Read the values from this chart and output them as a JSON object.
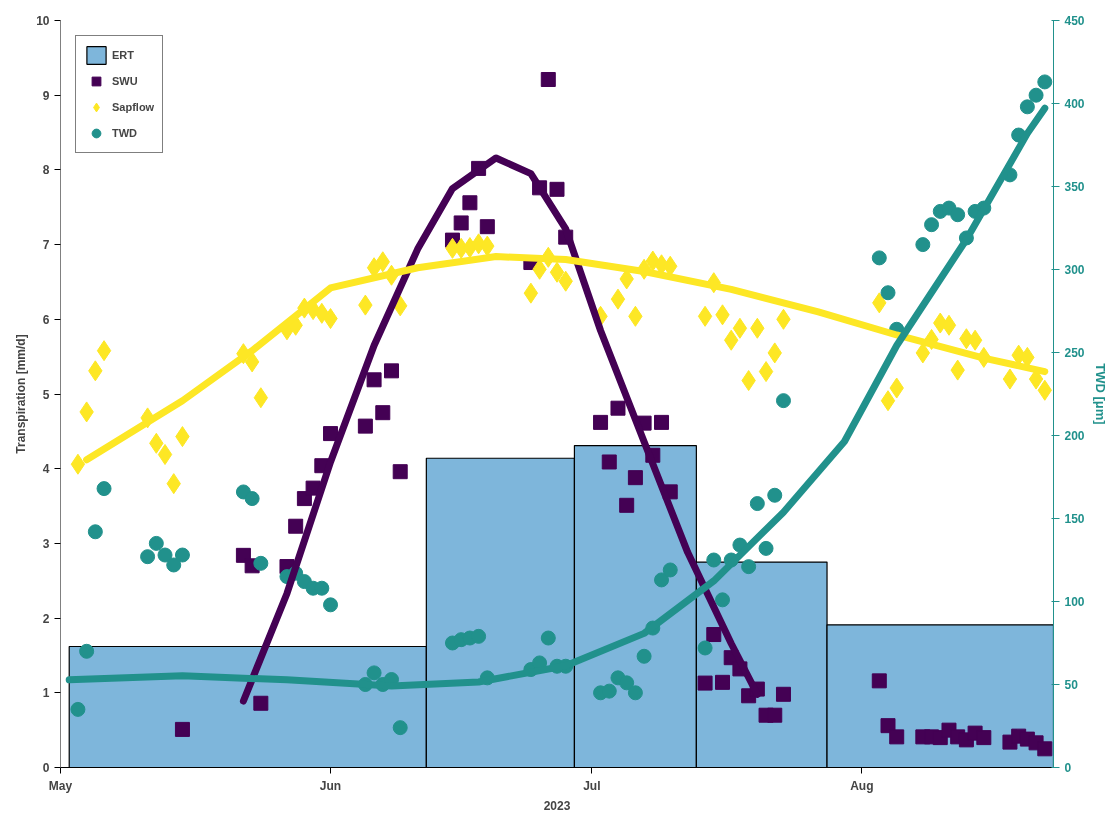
{
  "chart_data": {
    "type": "scatter",
    "xlabel": "2023",
    "ylabel": "Transpiration [mm/d]",
    "y2label": "TWD [μm]",
    "xlim": [
      "2023-05-01",
      "2023-08-23"
    ],
    "xticks": [
      {
        "value": "2023-05-01",
        "label": "May"
      },
      {
        "value": "2023-06-01",
        "label": "Jun"
      },
      {
        "value": "2023-07-01",
        "label": "Jul"
      },
      {
        "value": "2023-08-01",
        "label": "Aug"
      }
    ],
    "ylim": [
      0,
      10
    ],
    "yticks": [
      0,
      1,
      2,
      3,
      4,
      5,
      6,
      7,
      8,
      9,
      10
    ],
    "y2lim": [
      0,
      450
    ],
    "y2ticks": [
      0,
      50,
      100,
      150,
      200,
      250,
      300,
      350,
      400,
      450
    ],
    "grid": false,
    "legend": "top left",
    "series": [
      {
        "name": "ERT",
        "type": "histogram",
        "color": "#7eb6db",
        "bins": [
          "2023-05-02",
          "2023-06-12",
          "2023-06-29",
          "2023-07-13",
          "2023-07-28",
          "2023-08-23"
        ],
        "values": [
          1.62,
          4.14,
          4.31,
          2.75,
          1.91
        ]
      },
      {
        "name": "SWU",
        "marker": "square",
        "color": "#440154",
        "x": [
          "2023-05-15",
          "2023-05-22",
          "2023-05-23",
          "2023-05-24",
          "2023-05-27",
          "2023-05-28",
          "2023-05-29",
          "2023-05-30",
          "2023-05-31",
          "2023-06-01",
          "2023-06-05",
          "2023-06-06",
          "2023-06-07",
          "2023-06-08",
          "2023-06-09",
          "2023-06-15",
          "2023-06-16",
          "2023-06-17",
          "2023-06-18",
          "2023-06-19",
          "2023-06-24",
          "2023-06-25",
          "2023-06-26",
          "2023-06-27",
          "2023-06-28",
          "2023-07-02",
          "2023-07-03",
          "2023-07-04",
          "2023-07-05",
          "2023-07-06",
          "2023-07-07",
          "2023-07-08",
          "2023-07-09",
          "2023-07-10",
          "2023-07-14",
          "2023-07-15",
          "2023-07-16",
          "2023-07-17",
          "2023-07-18",
          "2023-07-19",
          "2023-07-20",
          "2023-07-21",
          "2023-07-22",
          "2023-07-23",
          "2023-08-03",
          "2023-08-04",
          "2023-08-05",
          "2023-08-08",
          "2023-08-09",
          "2023-08-10",
          "2023-08-11",
          "2023-08-12",
          "2023-08-13",
          "2023-08-14",
          "2023-08-15",
          "2023-08-18",
          "2023-08-19",
          "2023-08-20",
          "2023-08-21",
          "2023-08-22"
        ],
        "values": [
          0.51,
          2.84,
          2.7,
          0.86,
          2.69,
          3.23,
          3.6,
          3.74,
          4.04,
          4.47,
          4.57,
          5.19,
          4.75,
          5.31,
          3.96,
          7.06,
          7.29,
          7.56,
          8.02,
          7.24,
          6.76,
          7.76,
          9.21,
          7.74,
          7.1,
          4.62,
          4.09,
          4.81,
          3.51,
          3.88,
          4.61,
          4.18,
          4.62,
          3.69,
          1.13,
          1.78,
          1.14,
          1.47,
          1.32,
          0.96,
          1.05,
          0.7,
          0.7,
          0.98,
          1.16,
          0.56,
          0.41,
          0.41,
          0.41,
          0.4,
          0.5,
          0.41,
          0.37,
          0.46,
          0.4,
          0.34,
          0.42,
          0.38,
          0.33,
          0.25
        ]
      },
      {
        "name": "Sapflow",
        "marker": "diamond",
        "color": "#fde725",
        "x": [
          "2023-05-03",
          "2023-05-04",
          "2023-05-05",
          "2023-05-06",
          "2023-05-11",
          "2023-05-12",
          "2023-05-13",
          "2023-05-14",
          "2023-05-15",
          "2023-05-22",
          "2023-05-23",
          "2023-05-24",
          "2023-05-27",
          "2023-05-28",
          "2023-05-29",
          "2023-05-30",
          "2023-05-31",
          "2023-06-01",
          "2023-06-05",
          "2023-06-06",
          "2023-06-07",
          "2023-06-08",
          "2023-06-09",
          "2023-06-15",
          "2023-06-16",
          "2023-06-17",
          "2023-06-18",
          "2023-06-19",
          "2023-06-24",
          "2023-06-25",
          "2023-06-26",
          "2023-06-27",
          "2023-06-28",
          "2023-07-02",
          "2023-07-04",
          "2023-07-05",
          "2023-07-06",
          "2023-07-07",
          "2023-07-08",
          "2023-07-09",
          "2023-07-10",
          "2023-07-14",
          "2023-07-15",
          "2023-07-16",
          "2023-07-17",
          "2023-07-18",
          "2023-07-19",
          "2023-07-20",
          "2023-07-21",
          "2023-07-22",
          "2023-07-23",
          "2023-08-03",
          "2023-08-04",
          "2023-08-05",
          "2023-08-08",
          "2023-08-09",
          "2023-08-10",
          "2023-08-11",
          "2023-08-12",
          "2023-08-13",
          "2023-08-14",
          "2023-08-15",
          "2023-08-18",
          "2023-08-19",
          "2023-08-20",
          "2023-08-21",
          "2023-08-22"
        ],
        "values": [
          4.06,
          4.76,
          5.31,
          5.58,
          4.68,
          4.34,
          4.19,
          3.8,
          4.43,
          5.54,
          5.43,
          4.95,
          5.86,
          5.92,
          6.15,
          6.13,
          6.08,
          6.01,
          6.19,
          6.69,
          6.77,
          6.59,
          6.18,
          6.95,
          6.95,
          6.96,
          7.01,
          6.98,
          6.35,
          6.67,
          6.83,
          6.63,
          6.51,
          6.04,
          6.27,
          6.54,
          6.04,
          6.67,
          6.78,
          6.73,
          6.71,
          6.04,
          6.49,
          6.06,
          5.72,
          5.88,
          5.18,
          5.88,
          5.3,
          5.55,
          6.0,
          6.22,
          4.91,
          5.08,
          5.55,
          5.73,
          5.95,
          5.92,
          5.32,
          5.74,
          5.72,
          5.49,
          5.2,
          5.52,
          5.49,
          5.2,
          5.05
        ]
      },
      {
        "name": "TWD",
        "marker": "circle",
        "axis": "y2",
        "color": "#21918c",
        "x": [
          "2023-05-03",
          "2023-05-04",
          "2023-05-05",
          "2023-05-06",
          "2023-05-11",
          "2023-05-12",
          "2023-05-13",
          "2023-05-14",
          "2023-05-15",
          "2023-05-22",
          "2023-05-23",
          "2023-05-24",
          "2023-05-27",
          "2023-05-28",
          "2023-05-29",
          "2023-05-30",
          "2023-05-31",
          "2023-06-01",
          "2023-06-05",
          "2023-06-06",
          "2023-06-07",
          "2023-06-08",
          "2023-06-09",
          "2023-06-15",
          "2023-06-16",
          "2023-06-17",
          "2023-06-18",
          "2023-06-19",
          "2023-06-24",
          "2023-06-25",
          "2023-06-26",
          "2023-06-27",
          "2023-06-28",
          "2023-07-02",
          "2023-07-03",
          "2023-07-04",
          "2023-07-05",
          "2023-07-06",
          "2023-07-07",
          "2023-07-08",
          "2023-07-09",
          "2023-07-10",
          "2023-07-14",
          "2023-07-15",
          "2023-07-16",
          "2023-07-17",
          "2023-07-18",
          "2023-07-19",
          "2023-07-20",
          "2023-07-21",
          "2023-07-22",
          "2023-07-23",
          "2023-08-03",
          "2023-08-04",
          "2023-08-05",
          "2023-08-08",
          "2023-08-09",
          "2023-08-10",
          "2023-08-11",
          "2023-08-12",
          "2023-08-13",
          "2023-08-14",
          "2023-08-15",
          "2023-08-18",
          "2023-08-19",
          "2023-08-20",
          "2023-08-21",
          "2023-08-22"
        ],
        "values": [
          35,
          70,
          142,
          168,
          127,
          135,
          128,
          122,
          128,
          166,
          162,
          123,
          115,
          117,
          112,
          108,
          108,
          98,
          50,
          57,
          50,
          53,
          24,
          75,
          77,
          78,
          79,
          54,
          59,
          63,
          78,
          61,
          61,
          45,
          46,
          54,
          51,
          45,
          67,
          84,
          113,
          119,
          72,
          125,
          101,
          125,
          134,
          121,
          159,
          132,
          164,
          221,
          307,
          286,
          264,
          315,
          327,
          335,
          337,
          333,
          319,
          335,
          337,
          357,
          381,
          398,
          405,
          413
        ]
      },
      {
        "type": "line",
        "color": "#440154",
        "x": [
          "2023-05-22",
          "2023-05-27",
          "2023-06-01",
          "2023-06-06",
          "2023-06-11",
          "2023-06-15",
          "2023-06-20",
          "2023-06-24",
          "2023-06-28",
          "2023-07-02",
          "2023-07-07",
          "2023-07-12",
          "2023-07-17",
          "2023-07-20"
        ],
        "values": [
          0.89,
          2.33,
          4.09,
          5.65,
          6.94,
          7.75,
          8.16,
          7.95,
          7.21,
          5.85,
          4.36,
          2.88,
          1.66,
          0.98
        ]
      },
      {
        "type": "line",
        "color": "#fde725",
        "x": [
          "2023-05-04",
          "2023-05-15",
          "2023-05-23",
          "2023-06-01",
          "2023-06-11",
          "2023-06-20",
          "2023-06-28",
          "2023-07-07",
          "2023-07-17",
          "2023-07-27",
          "2023-08-05",
          "2023-08-15",
          "2023-08-22"
        ],
        "values": [
          4.12,
          4.91,
          5.58,
          6.42,
          6.69,
          6.84,
          6.8,
          6.64,
          6.4,
          6.1,
          5.79,
          5.48,
          5.3
        ]
      },
      {
        "type": "line",
        "axis": "y2",
        "color": "#21918c",
        "x": [
          "2023-05-02",
          "2023-05-15",
          "2023-05-27",
          "2023-06-08",
          "2023-06-18",
          "2023-06-28",
          "2023-07-07",
          "2023-07-15",
          "2023-07-23",
          "2023-07-30",
          "2023-08-05",
          "2023-08-13",
          "2023-08-20",
          "2023-08-22"
        ],
        "values": [
          52.8,
          55.2,
          52.8,
          49.1,
          51.5,
          61.3,
          80.8,
          112.4,
          153.8,
          196.4,
          254.2,
          318.1,
          382,
          397.2
        ]
      }
    ]
  }
}
